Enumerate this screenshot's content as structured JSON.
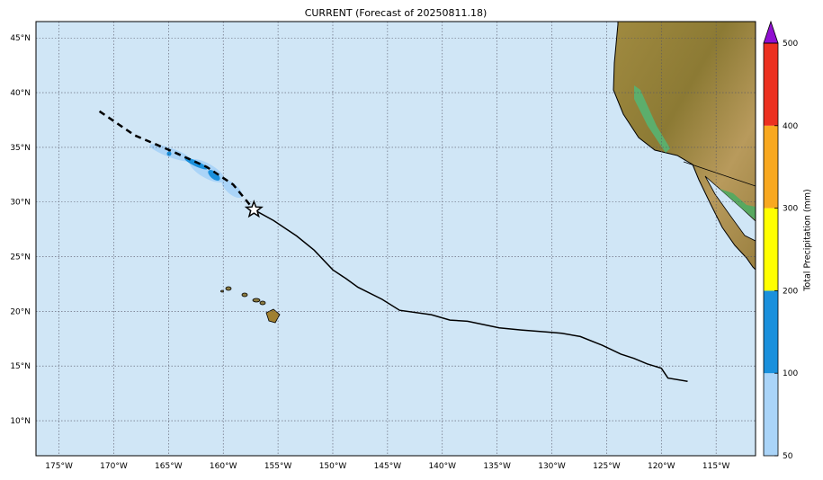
{
  "title": "CURRENT (Forecast of 20250811.18)",
  "map": {
    "projection": "cylindrical",
    "lon_range": [
      -177.1,
      -111.4
    ],
    "lat_range": [
      6.8,
      46.5
    ],
    "ocean_color": "#d0e6f6",
    "grid": "dotted",
    "lon_ticks": [
      -175,
      -170,
      -165,
      -160,
      -155,
      -150,
      -145,
      -140,
      -135,
      -130,
      -125,
      -120,
      -115
    ],
    "lon_tick_labels": [
      "175°W",
      "170°W",
      "165°W",
      "160°W",
      "155°W",
      "150°W",
      "145°W",
      "140°W",
      "135°W",
      "130°W",
      "125°W",
      "120°W",
      "115°W"
    ],
    "lat_ticks": [
      45,
      40,
      35,
      30,
      25,
      20,
      15,
      10
    ],
    "lat_tick_labels": [
      "45°N",
      "40°N",
      "35°N",
      "30°N",
      "25°N",
      "20°N",
      "15°N",
      "10°N"
    ]
  },
  "track": {
    "past_dashed": [
      [
        -171.3,
        38.3
      ],
      [
        -168.1,
        36.1
      ],
      [
        -164.8,
        34.7
      ],
      [
        -161.5,
        33.2
      ],
      [
        -159.1,
        31.6
      ],
      [
        -157.2,
        29.3
      ]
    ],
    "forecast_solid": [
      [
        -157.2,
        29.3
      ],
      [
        -155.4,
        28.3
      ],
      [
        -153.3,
        26.9
      ],
      [
        -151.7,
        25.6
      ],
      [
        -150.0,
        23.8
      ],
      [
        -148.8,
        23.0
      ],
      [
        -147.7,
        22.2
      ],
      [
        -145.5,
        21.1
      ],
      [
        -143.9,
        20.1
      ],
      [
        -141.0,
        19.7
      ],
      [
        -139.3,
        19.2
      ],
      [
        -137.7,
        19.1
      ],
      [
        -134.8,
        18.5
      ],
      [
        -132.8,
        18.3
      ],
      [
        -130.3,
        18.1
      ],
      [
        -129.1,
        18.0
      ],
      [
        -127.4,
        17.7
      ],
      [
        -125.4,
        16.9
      ],
      [
        -123.7,
        16.1
      ],
      [
        -122.5,
        15.7
      ],
      [
        -121.3,
        15.2
      ],
      [
        -120.0,
        14.8
      ],
      [
        -119.4,
        13.9
      ],
      [
        -117.6,
        13.6
      ]
    ],
    "current_position_icon": "star-icon",
    "current_position": [
      -157.2,
      29.3
    ]
  },
  "colorbar": {
    "label": "Total Precipitation (mm)",
    "tick_labels": [
      "50",
      "100",
      "200",
      "300",
      "400",
      "500"
    ],
    "bins": [
      {
        "from": 50,
        "to": 100,
        "color": "#aad4f8"
      },
      {
        "from": 100,
        "to": 200,
        "color": "#1a90dc"
      },
      {
        "from": 200,
        "to": 300,
        "color": "#ffff00"
      },
      {
        "from": 300,
        "to": 400,
        "color": "#f8a820"
      },
      {
        "from": 400,
        "to": 500,
        "color": "#ec3020"
      }
    ],
    "extend_color": "#9010d0"
  }
}
